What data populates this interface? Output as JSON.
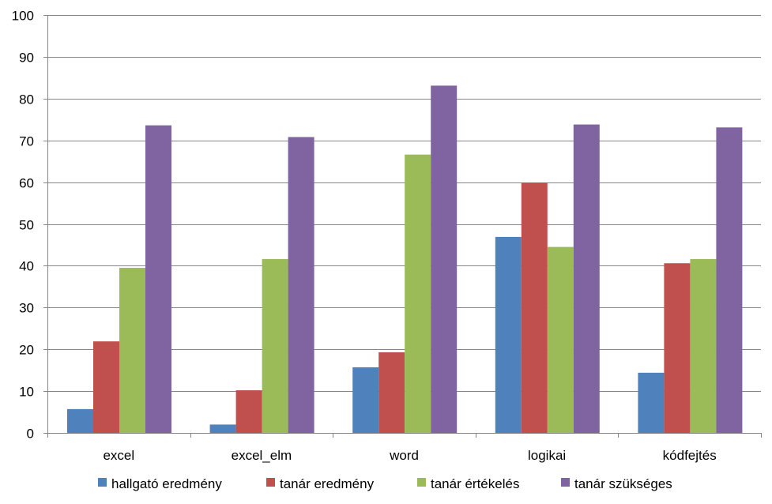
{
  "chart_data": {
    "type": "bar",
    "categories": [
      "excel",
      "excel_elm",
      "word",
      "logikai",
      "kódfejtés"
    ],
    "series": [
      {
        "name": "hallgató eredmény",
        "color": "#4F81BD",
        "values": [
          5.7,
          2.0,
          15.7,
          46.9,
          14.4
        ]
      },
      {
        "name": "tanár eredmény",
        "color": "#C0504D",
        "values": [
          21.9,
          10.2,
          19.3,
          59.9,
          40.6
        ]
      },
      {
        "name": "tanár értékelés",
        "color": "#9BBB59",
        "values": [
          39.5,
          41.6,
          66.6,
          44.5,
          41.6
        ]
      },
      {
        "name": "tanár szükséges",
        "color": "#8064A2",
        "values": [
          73.6,
          70.8,
          83.1,
          73.8,
          73.1
        ]
      }
    ],
    "yticks": [
      "0",
      "10",
      "20",
      "30",
      "40",
      "50",
      "60",
      "70",
      "80",
      "90",
      "100"
    ],
    "ylim": [
      0,
      100
    ],
    "grid": true,
    "legend_position": "bottom",
    "title": "",
    "xlabel": "",
    "ylabel": ""
  }
}
